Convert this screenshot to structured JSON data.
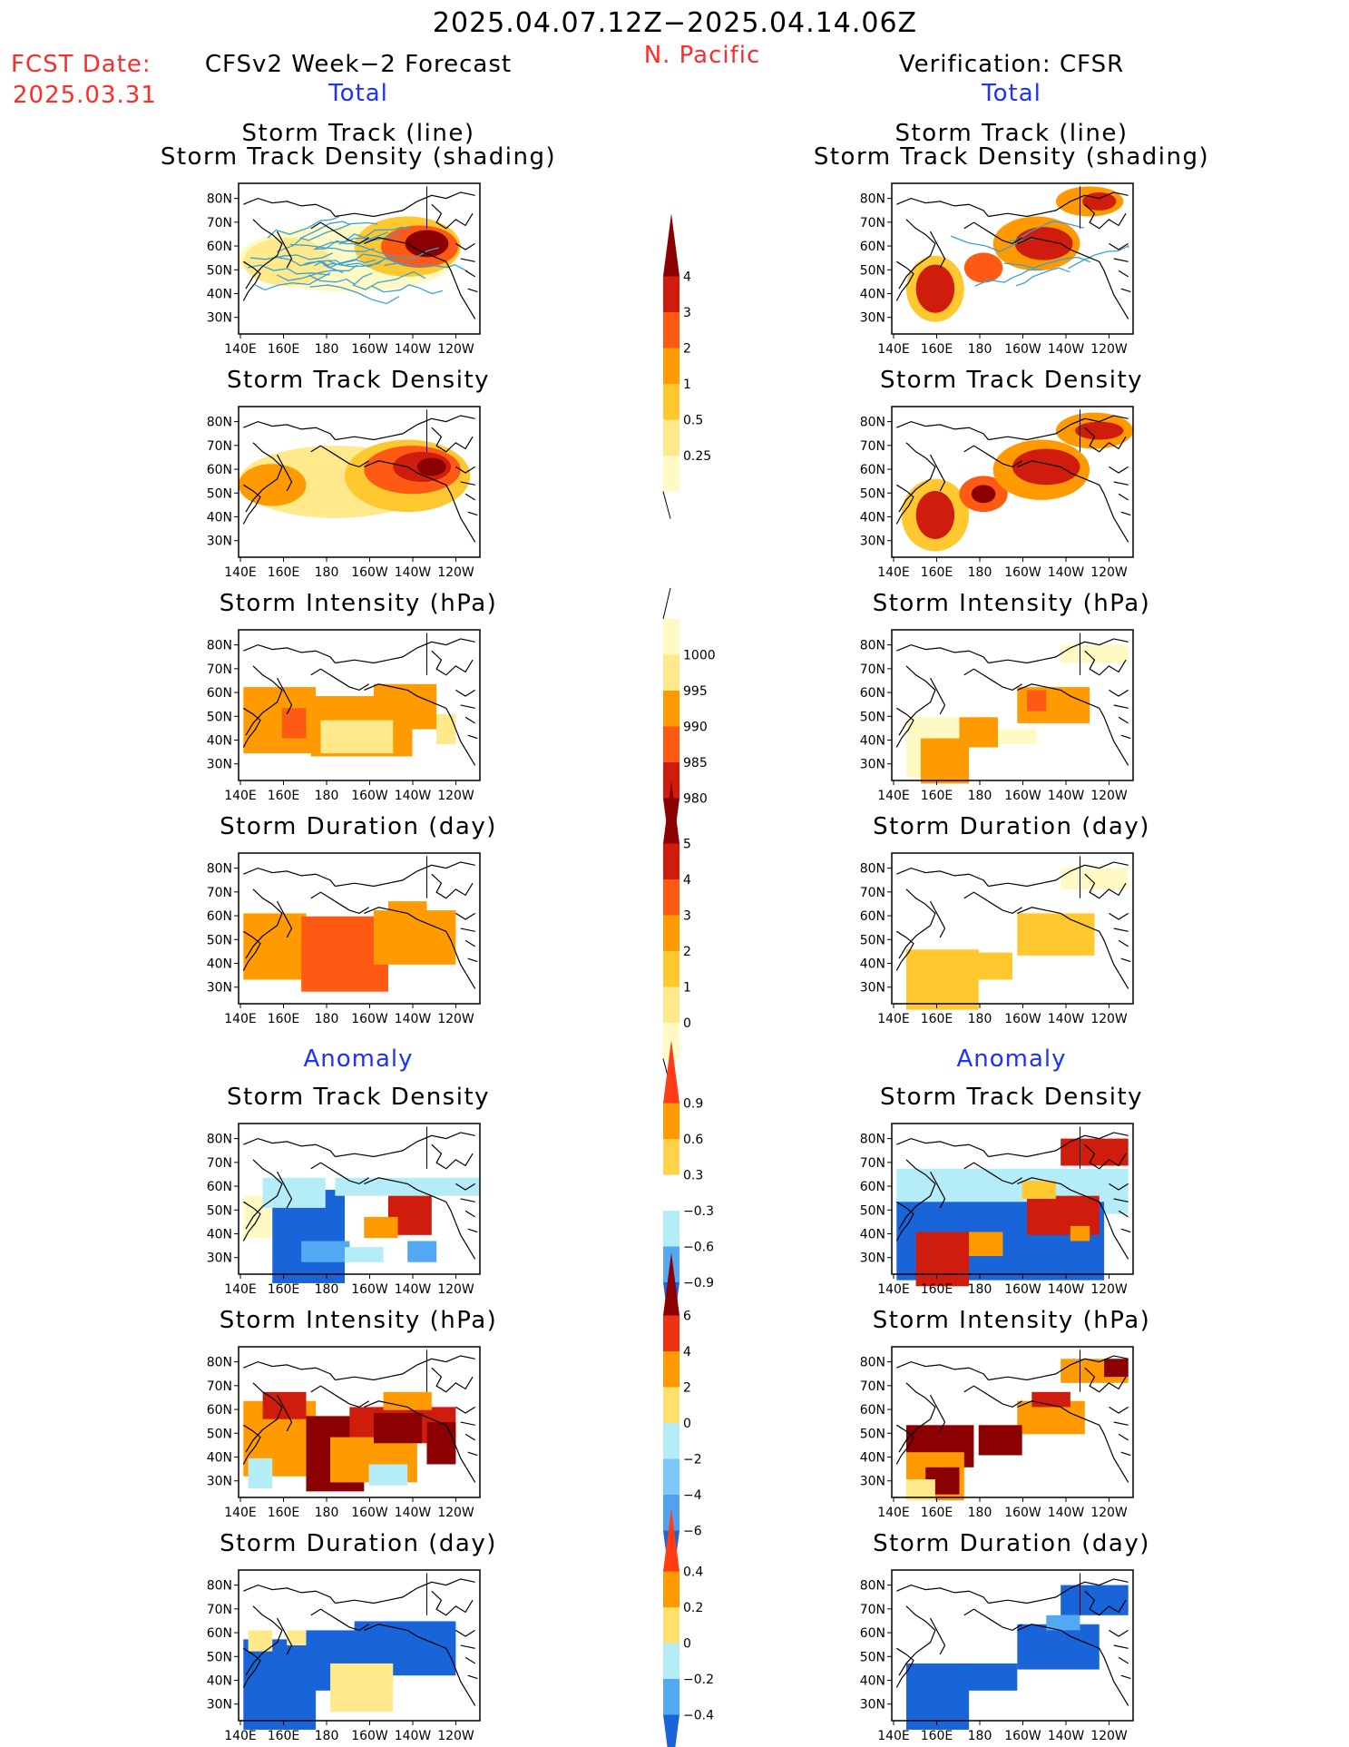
{
  "header": {
    "period": "2025.04.07.12Z−2025.04.14.06Z",
    "region": "N. Pacific",
    "fcst_label": "FCST Date:",
    "fcst_date": "2025.03.31",
    "left_title": "CFSv2 Week−2 Forecast",
    "right_title": "Verification: CFSR",
    "total_label": "Total",
    "anomaly_label": "Anomaly"
  },
  "panel_titles": {
    "track": [
      "Storm Track (line)",
      "Storm Track Density (shading)"
    ],
    "density": "Storm Track Density",
    "intensity": "Storm Intensity (hPa)",
    "duration": "Storm Duration (day)"
  },
  "axes": {
    "lat_ticks": [
      "80N",
      "70N",
      "60N",
      "50N",
      "40N",
      "30N"
    ],
    "lon_ticks": [
      "140E",
      "160E",
      "180",
      "160W",
      "140W",
      "120W"
    ]
  },
  "colorbars": [
    {
      "id": "total-density",
      "labels": [
        "4",
        "3",
        "2",
        "1",
        "0.5",
        "0.25"
      ],
      "colors": [
        "#8b0000",
        "#d01c0c",
        "#ff5a14",
        "#ff9a00",
        "#ffc82e",
        "#ffe98a",
        "#fffac4"
      ]
    },
    {
      "id": "total-intensity",
      "labels": [
        "1000",
        "995",
        "990",
        "985",
        "980"
      ],
      "colors": [
        "#fffac4",
        "#ffe98a",
        "#ff9a00",
        "#ff5a14",
        "#d01c0c",
        "#8b0000"
      ]
    },
    {
      "id": "total-duration",
      "labels": [
        "5",
        "4",
        "3",
        "2",
        "1",
        "0"
      ],
      "colors": [
        "#8b0000",
        "#d01c0c",
        "#ff5a14",
        "#ff9a00",
        "#ffc82e",
        "#ffe98a",
        "#fffac4"
      ]
    },
    {
      "id": "anom-density",
      "labels": [
        "0.9",
        "0.6",
        "0.3",
        "−0.3",
        "−0.6",
        "−0.9"
      ],
      "colors": [
        "#ff3c14",
        "#ff9a00",
        "#ffd24a",
        "#ffffff",
        "#b4ecf8",
        "#52a8f2",
        "#1864d8"
      ]
    },
    {
      "id": "anom-intensity",
      "labels": [
        "6",
        "4",
        "2",
        "0",
        "−2",
        "−4",
        "−6"
      ],
      "colors": [
        "#8b0000",
        "#f03214",
        "#ff9a00",
        "#ffe06a",
        "#b4ecf8",
        "#7cc8f8",
        "#52a0f0",
        "#1e64d8"
      ]
    },
    {
      "id": "anom-duration",
      "labels": [
        "0.4",
        "0.2",
        "0",
        "−0.2",
        "−0.4"
      ],
      "colors": [
        "#ff3c14",
        "#ff9a00",
        "#ffe06a",
        "#b4ecf8",
        "#52a8f2",
        "#1864d8"
      ]
    }
  ],
  "colors": {
    "title_red": "#ff2a2a",
    "label_blue": "#1c32ff",
    "track_line": "#3aa0d8"
  }
}
